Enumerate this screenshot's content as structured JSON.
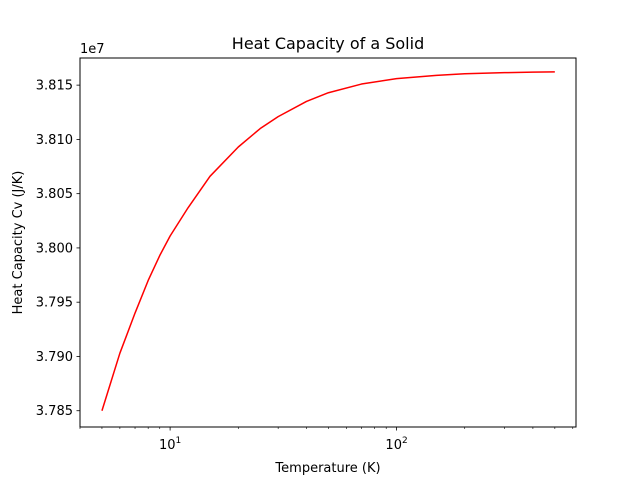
{
  "chart_data": {
    "type": "line",
    "title": "Heat Capacity of a Solid",
    "xlabel": "Temperature (K)",
    "ylabel": "Heat Capacity Cv (J/K)",
    "xscale": "log",
    "xlim": [
      4.0,
      620
    ],
    "ylim": [
      37835000.0,
      38175000.0
    ],
    "y_offset_label": "1e7",
    "grid": false,
    "legend": "none",
    "line_color": "#ff0000",
    "x_major_ticks": [
      {
        "value": 10,
        "base": "10",
        "exp": "1"
      },
      {
        "value": 100,
        "base": "10",
        "exp": "2"
      }
    ],
    "y_ticks": [
      {
        "value": 37850000.0,
        "label": "3.785"
      },
      {
        "value": 37900000.0,
        "label": "3.790"
      },
      {
        "value": 37950000.0,
        "label": "3.795"
      },
      {
        "value": 38000000.0,
        "label": "3.800"
      },
      {
        "value": 38050000.0,
        "label": "3.805"
      },
      {
        "value": 38100000.0,
        "label": "3.810"
      },
      {
        "value": 38150000.0,
        "label": "3.815"
      }
    ],
    "series": [
      {
        "x": [
          5,
          6,
          7,
          8,
          9,
          10,
          12,
          15,
          20,
          25,
          30,
          40,
          50,
          70,
          100,
          150,
          200,
          300,
          400,
          500
        ],
        "y": [
          37850000,
          37903000,
          37940000,
          37970000,
          37993000,
          38011000,
          38037000,
          38066000,
          38093000,
          38110000,
          38121000,
          38135000,
          38143000,
          38151000,
          38156000,
          38159000,
          38160500,
          38161500,
          38162000,
          38162200
        ]
      }
    ]
  }
}
